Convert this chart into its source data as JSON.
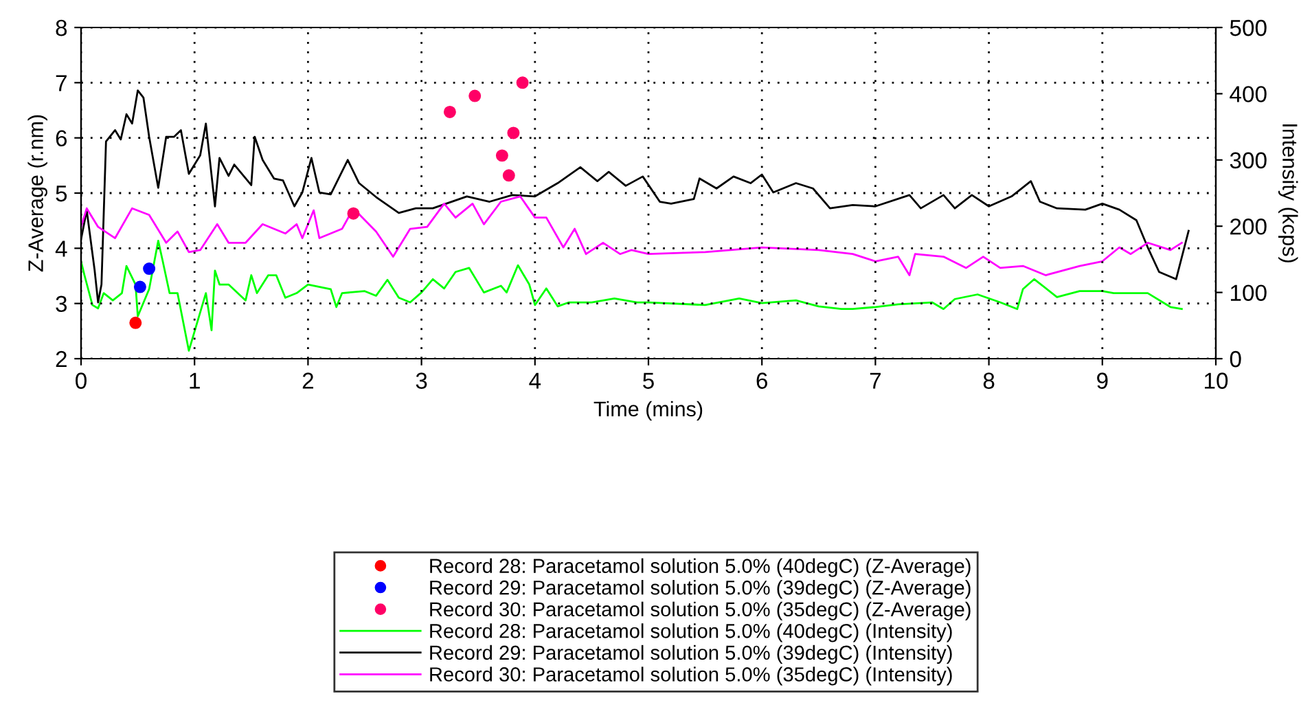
{
  "chart_data": {
    "type": "line",
    "xlabel": "Time (mins)",
    "ylabel": "Z-Average (r.nm)",
    "y2label": "Intensity (kcps)",
    "xlim": [
      0,
      10
    ],
    "xticks": [
      0,
      1,
      2,
      3,
      4,
      5,
      6,
      7,
      8,
      9,
      10
    ],
    "ylim": [
      2,
      8
    ],
    "yticks": [
      2,
      3,
      4,
      5,
      6,
      7,
      8
    ],
    "y2lim": [
      0,
      500
    ],
    "y2ticks": [
      0,
      100,
      200,
      300,
      400,
      500
    ],
    "grid": true,
    "legend": "bottom",
    "series": [
      {
        "name": "Record 28: Paracetamol solution 5.0% (40degC) (Z-Average)",
        "type": "scatter",
        "marker": "circle",
        "color": "#ff0000",
        "x": [
          0.48
        ],
        "values": [
          2.65
        ]
      },
      {
        "name": "Record 29: Paracetamol solution 5.0% (39degC) (Z-Average)",
        "type": "scatter",
        "marker": "circle",
        "color": "#0000ff",
        "x": [
          0.52,
          0.6
        ],
        "values": [
          3.3,
          3.63
        ]
      },
      {
        "name": "Record 30: Paracetamol solution 5.0% (35degC) (Z-Average)",
        "type": "scatter",
        "marker": "circle",
        "color": "#ff0066",
        "x": [
          2.4,
          3.25,
          3.47,
          3.71,
          3.77,
          3.81,
          3.89
        ],
        "values": [
          4.63,
          6.47,
          6.76,
          5.68,
          5.32,
          6.09,
          7.0
        ]
      },
      {
        "name": "Record 28: Paracetamol solution 5.0% (40degC) (Intensity)",
        "axis": "y2",
        "marker": "none",
        "line_style": "solid",
        "color": "#00ff00",
        "x": [
          0,
          0.03,
          0.1,
          0.15,
          0.2,
          0.28,
          0.36,
          0.4,
          0.48,
          0.5,
          0.6,
          0.68,
          0.72,
          0.78,
          0.85,
          0.95,
          1.1,
          1.15,
          1.18,
          1.22,
          1.3,
          1.45,
          1.5,
          1.55,
          1.65,
          1.72,
          1.8,
          1.9,
          2.0,
          2.2,
          2.25,
          2.3,
          2.5,
          2.6,
          2.7,
          2.8,
          2.9,
          3.0,
          3.1,
          3.2,
          3.3,
          3.42,
          3.55,
          3.7,
          3.75,
          3.85,
          3.95,
          4.0,
          4.1,
          4.2,
          4.3,
          4.5,
          4.7,
          4.9,
          5.0,
          5.5,
          5.8,
          6.0,
          6.3,
          6.5,
          6.7,
          6.8,
          7.0,
          7.2,
          7.5,
          7.6,
          7.7,
          7.9,
          8.1,
          8.25,
          8.3,
          8.4,
          8.6,
          8.8,
          9.0,
          9.1,
          9.4,
          9.6,
          9.7
        ],
        "values": [
          147,
          126,
          81,
          76,
          99,
          88,
          99,
          140,
          112,
          64,
          105,
          178,
          147,
          99,
          99,
          12,
          99,
          43,
          133,
          112,
          112,
          88,
          126,
          99,
          126,
          126,
          92,
          99,
          112,
          105,
          78,
          99,
          102,
          95,
          119,
          92,
          85,
          100,
          120,
          106,
          131,
          137,
          100,
          110,
          100,
          141,
          112,
          81,
          106,
          79,
          85,
          85,
          91,
          85,
          85,
          81,
          91,
          84,
          88,
          79,
          75,
          75,
          78,
          82,
          85,
          75,
          90,
          97,
          85,
          75,
          105,
          120,
          93,
          102,
          102,
          99,
          99,
          78,
          75
        ]
      },
      {
        "name": "Record 29: Paracetamol solution 5.0% (39degC) (Intensity)",
        "axis": "y2",
        "marker": "none",
        "line_style": "solid",
        "color": "#000000",
        "x": [
          0,
          0.05,
          0.12,
          0.15,
          0.18,
          0.22,
          0.3,
          0.35,
          0.4,
          0.45,
          0.5,
          0.55,
          0.6,
          0.68,
          0.75,
          0.82,
          0.88,
          0.95,
          1.05,
          1.1,
          1.18,
          1.22,
          1.3,
          1.35,
          1.5,
          1.53,
          1.6,
          1.7,
          1.78,
          1.88,
          1.95,
          2.03,
          2.1,
          2.2,
          2.35,
          2.45,
          2.6,
          2.8,
          2.95,
          3.1,
          3.4,
          3.6,
          3.8,
          4.0,
          4.2,
          4.4,
          4.55,
          4.65,
          4.8,
          4.95,
          5.1,
          5.2,
          5.4,
          5.45,
          5.6,
          5.75,
          5.9,
          6.0,
          6.1,
          6.3,
          6.45,
          6.6,
          6.8,
          7.0,
          7.3,
          7.4,
          7.6,
          7.7,
          7.85,
          8.0,
          8.2,
          8.37,
          8.45,
          8.6,
          8.85,
          9.0,
          9.15,
          9.3,
          9.4,
          9.5,
          9.65,
          9.76
        ],
        "values": [
          180,
          224,
          133,
          85,
          112,
          328,
          345,
          331,
          369,
          355,
          405,
          394,
          335,
          258,
          335,
          335,
          345,
          279,
          307,
          355,
          230,
          303,
          276,
          293,
          262,
          335,
          300,
          272,
          269,
          230,
          251,
          303,
          251,
          248,
          300,
          265,
          244,
          220,
          227,
          227,
          245,
          237,
          247,
          245,
          265,
          289,
          268,
          282,
          261,
          275,
          237,
          234,
          241,
          272,
          257,
          275,
          265,
          278,
          251,
          265,
          257,
          227,
          232,
          230,
          247,
          227,
          247,
          227,
          247,
          230,
          245,
          268,
          237,
          227,
          225,
          234,
          225,
          209,
          168,
          131,
          120,
          193
        ]
      },
      {
        "name": "Record 30: Paracetamol solution 5.0% (35degC) (Intensity)",
        "axis": "y2",
        "marker": "none",
        "line_style": "solid",
        "color": "#ff00ff",
        "x": [
          0,
          0.05,
          0.15,
          0.3,
          0.45,
          0.6,
          0.75,
          0.85,
          0.95,
          1.05,
          1.2,
          1.3,
          1.45,
          1.6,
          1.8,
          1.9,
          1.95,
          2.05,
          2.1,
          2.3,
          2.4,
          2.6,
          2.75,
          2.9,
          3.05,
          3.2,
          3.3,
          3.45,
          3.55,
          3.7,
          3.87,
          4.0,
          4.1,
          4.25,
          4.35,
          4.45,
          4.6,
          4.75,
          4.85,
          5.0,
          5.5,
          6.0,
          6.5,
          6.8,
          7.0,
          7.2,
          7.3,
          7.35,
          7.6,
          7.8,
          7.95,
          8.1,
          8.3,
          8.5,
          8.8,
          9.0,
          9.15,
          9.25,
          9.4,
          9.6,
          9.7
        ],
        "values": [
          199,
          227,
          199,
          182,
          227,
          217,
          175,
          192,
          161,
          164,
          203,
          175,
          175,
          203,
          189,
          203,
          182,
          224,
          182,
          196,
          227,
          192,
          154,
          196,
          199,
          234,
          213,
          234,
          203,
          237,
          245,
          213,
          213,
          168,
          196,
          158,
          175,
          158,
          164,
          158,
          161,
          168,
          164,
          158,
          147,
          154,
          126,
          158,
          154,
          137,
          154,
          137,
          140,
          126,
          140,
          147,
          168,
          158,
          175,
          164,
          175
        ]
      }
    ]
  }
}
